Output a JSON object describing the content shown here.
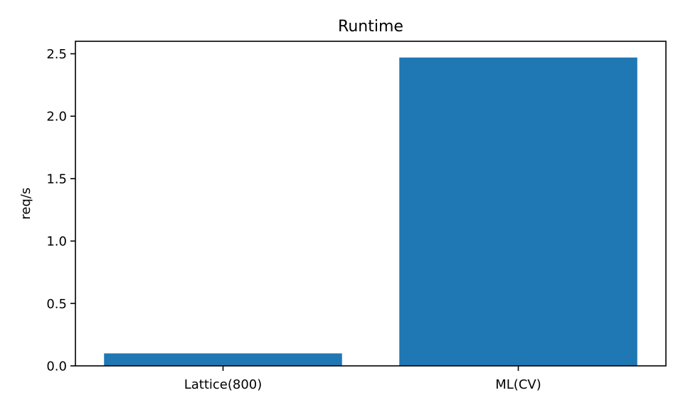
{
  "chart_data": {
    "type": "bar",
    "title": "Runtime",
    "xlabel": "",
    "ylabel": "req/s",
    "categories": [
      "Lattice(800)",
      "ML(CV)"
    ],
    "values": [
      0.1,
      2.47
    ],
    "ylim": [
      0,
      2.6
    ],
    "yticks": [
      0.0,
      0.5,
      1.0,
      1.5,
      2.0,
      2.5
    ],
    "ytick_labels": [
      "0.0",
      "0.5",
      "1.0",
      "1.5",
      "2.0",
      "2.5"
    ],
    "grid": false,
    "bar_color": "#1f77b4"
  }
}
